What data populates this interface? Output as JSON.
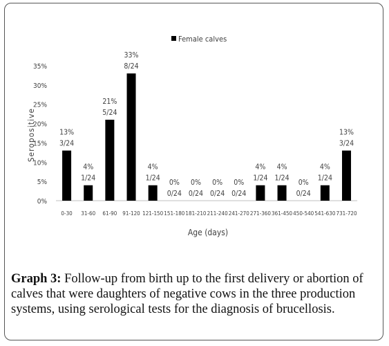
{
  "chart_data": {
    "type": "bar",
    "ylabel": "Seropositive",
    "xlabel": "Age (days)",
    "ylim": [
      0,
      35
    ],
    "yticks": [
      "0%",
      "5%",
      "10%",
      "15%",
      "20%",
      "25%",
      "30%",
      "35%"
    ],
    "grid": false,
    "legend": "top-center",
    "categories": [
      "0-30",
      "31-60",
      "61-90",
      "91-120",
      "121-150",
      "151-180",
      "181-210",
      "211-240",
      "241-270",
      "271-360",
      "361-450",
      "450-540",
      "541-630",
      "731-720"
    ],
    "series": [
      {
        "name": "Female calves",
        "color": "#000000",
        "values": [
          13,
          4,
          21,
          33,
          4,
          0,
          0,
          0,
          0,
          4,
          4,
          0,
          4,
          13
        ],
        "percent_labels": [
          "13%",
          "4%",
          "21%",
          "33%",
          "4%",
          "0%",
          "0%",
          "0%",
          "0%",
          "4%",
          "4%",
          "0%",
          "4%",
          "13%"
        ],
        "count_labels": [
          "3/24",
          "1/24",
          "5/24",
          "8/24",
          "1/24",
          "0/24",
          "0/24",
          "0/24",
          "0/24",
          "1/24",
          "1/24",
          "0/24",
          "1/24",
          "3/24"
        ]
      }
    ]
  },
  "caption": {
    "label": "Graph 3:",
    "text": " Follow-up from birth up to the first delivery or abortion of calves that were daughters of negative cows in the three production systems, using serological tests for the diagnosis of brucellosis."
  }
}
